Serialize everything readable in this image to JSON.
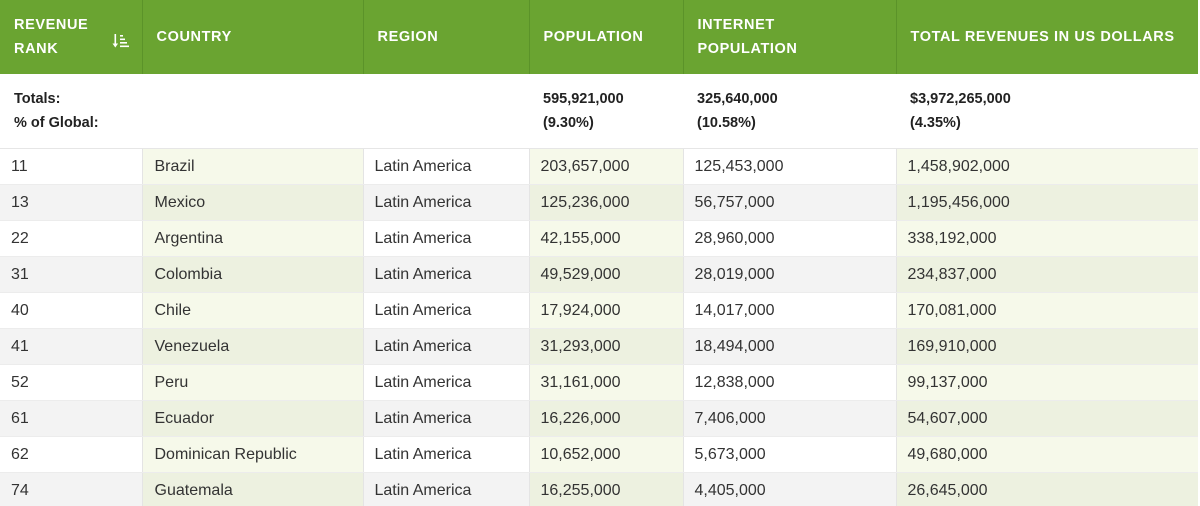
{
  "columns": {
    "rank": [
      "REVENUE",
      "RANK"
    ],
    "country": "COUNTRY",
    "region": "REGION",
    "population": "POPULATION",
    "internet": [
      "INTERNET",
      "POPULATION"
    ],
    "revenue": "TOTAL REVENUES IN US DOLLARS",
    "sort_icon": "sort-descending-icon"
  },
  "totals": {
    "label_totals": "Totals:",
    "label_pct": "% of Global:",
    "population": "595,921,000",
    "population_pct": "(9.30%)",
    "internet": "325,640,000",
    "internet_pct": "(10.58%)",
    "revenue": "$3,972,265,000",
    "revenue_pct": "(4.35%)"
  },
  "rows": [
    {
      "rank": "11",
      "country": "Brazil",
      "region": "Latin America",
      "population": "203,657,000",
      "internet": "125,453,000",
      "revenue": "1,458,902,000"
    },
    {
      "rank": "13",
      "country": "Mexico",
      "region": "Latin America",
      "population": "125,236,000",
      "internet": "56,757,000",
      "revenue": "1,195,456,000"
    },
    {
      "rank": "22",
      "country": "Argentina",
      "region": "Latin America",
      "population": "42,155,000",
      "internet": "28,960,000",
      "revenue": "338,192,000"
    },
    {
      "rank": "31",
      "country": "Colombia",
      "region": "Latin America",
      "population": "49,529,000",
      "internet": "28,019,000",
      "revenue": "234,837,000"
    },
    {
      "rank": "40",
      "country": "Chile",
      "region": "Latin America",
      "population": "17,924,000",
      "internet": "14,017,000",
      "revenue": "170,081,000"
    },
    {
      "rank": "41",
      "country": "Venezuela",
      "region": "Latin America",
      "population": "31,293,000",
      "internet": "18,494,000",
      "revenue": "169,910,000"
    },
    {
      "rank": "52",
      "country": "Peru",
      "region": "Latin America",
      "population": "31,161,000",
      "internet": "12,838,000",
      "revenue": "99,137,000"
    },
    {
      "rank": "61",
      "country": "Ecuador",
      "region": "Latin America",
      "population": "16,226,000",
      "internet": "7,406,000",
      "revenue": "54,607,000"
    },
    {
      "rank": "62",
      "country": "Dominican Republic",
      "region": "Latin America",
      "population": "10,652,000",
      "internet": "5,673,000",
      "revenue": "49,680,000"
    },
    {
      "rank": "74",
      "country": "Guatemala",
      "region": "Latin America",
      "population": "16,255,000",
      "internet": "4,405,000",
      "revenue": "26,645,000"
    }
  ]
}
